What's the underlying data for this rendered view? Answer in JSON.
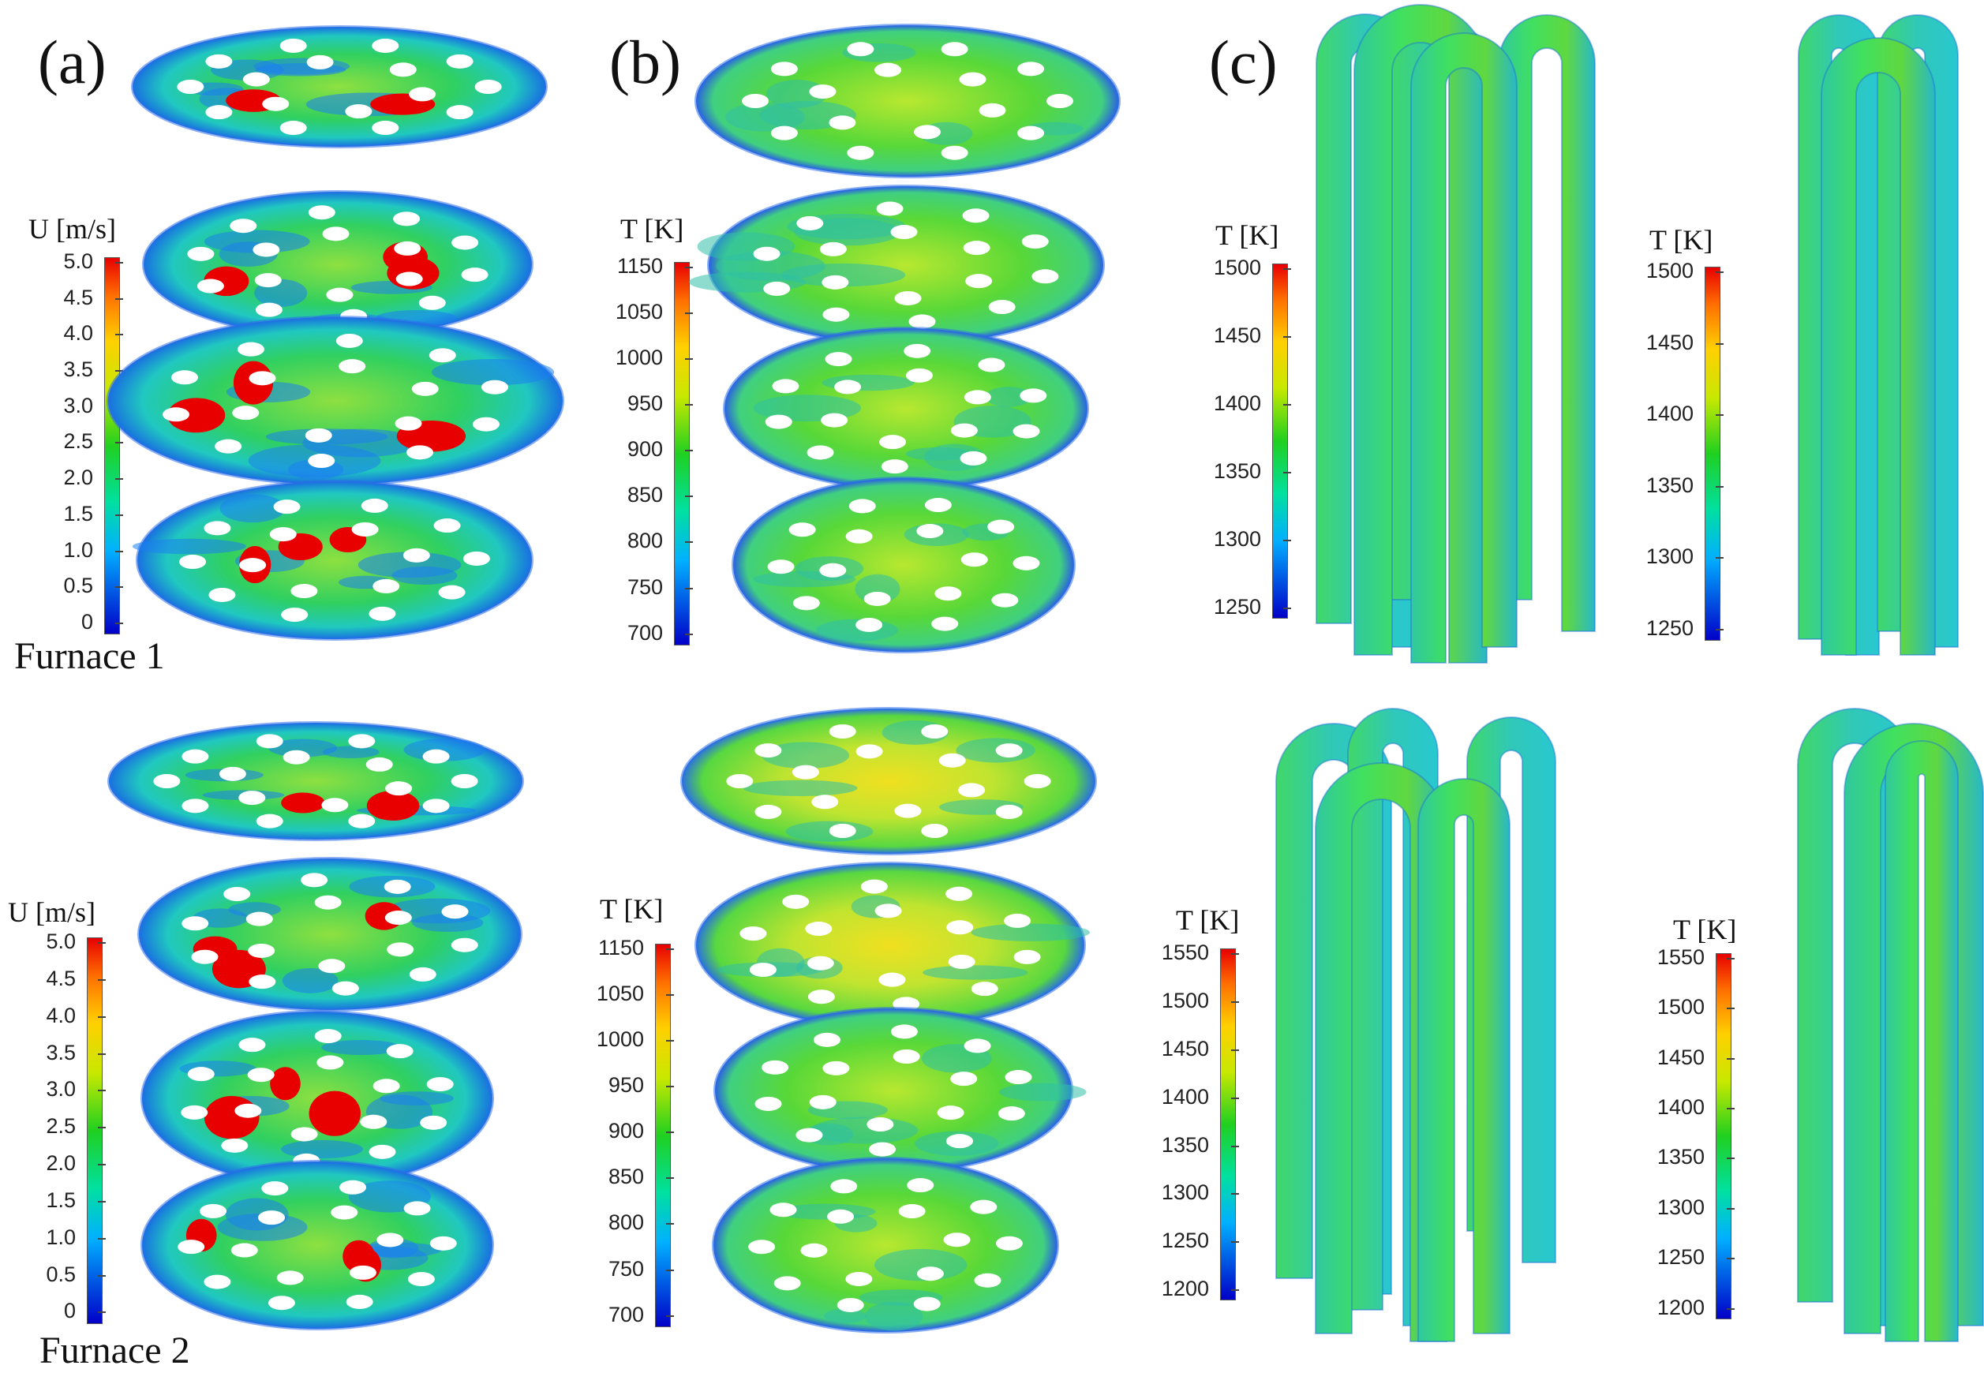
{
  "panels": {
    "a": "(a)",
    "b": "(b)",
    "c": "(c)"
  },
  "furnaces": {
    "f1": "Furnace 1",
    "f2": "Furnace 2"
  },
  "colorbars": {
    "velocity": {
      "title": "U [m/s]",
      "ticks": [
        "5.0",
        "4.5",
        "4.0",
        "3.5",
        "3.0",
        "2.5",
        "2.0",
        "1.5",
        "1.0",
        "0.5",
        "0"
      ]
    },
    "temp_gas": {
      "title": "T [K]",
      "ticks": [
        "1150",
        "1050",
        "1000",
        "950",
        "900",
        "850",
        "800",
        "750",
        "700"
      ]
    },
    "tube_f1_a": {
      "title": "T [K]",
      "ticks": [
        "1500",
        "1450",
        "1400",
        "1350",
        "1300",
        "1250"
      ]
    },
    "tube_f1_b": {
      "title": "T [K]",
      "ticks": [
        "1500",
        "1450",
        "1400",
        "1350",
        "1300",
        "1250"
      ]
    },
    "tube_f2_a": {
      "title": "T [K]",
      "ticks": [
        "1550",
        "1500",
        "1450",
        "1400",
        "1350",
        "1300",
        "1250",
        "1200"
      ]
    },
    "tube_f2_b": {
      "title": "T [K]",
      "ticks": [
        "1550",
        "1500",
        "1450",
        "1400",
        "1350",
        "1300",
        "1250",
        "1200"
      ]
    }
  },
  "colors": {
    "low": "#0000c8",
    "mid": "#20d020",
    "high": "#e80000",
    "background": "#ffffff"
  }
}
